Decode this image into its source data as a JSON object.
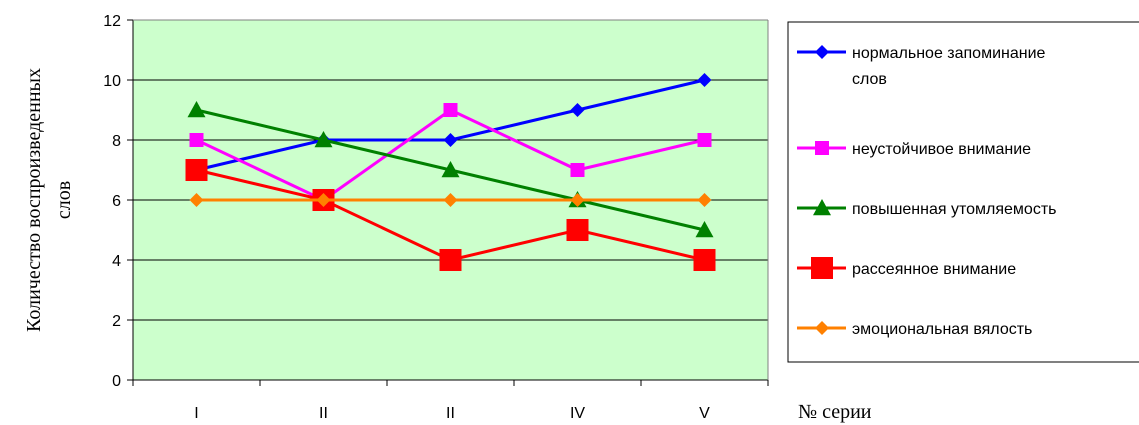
{
  "chart_data": {
    "type": "line",
    "categories": [
      "I",
      "II",
      "II",
      "IV",
      "V"
    ],
    "ylabel_line1": "Количество воспроизведенных",
    "ylabel_line2": "слов",
    "xlabel": "№ серии",
    "ylim": [
      0,
      12
    ],
    "yticks": [
      0,
      2,
      4,
      6,
      8,
      10,
      12
    ],
    "grid": "horizontal",
    "legend_position": "right",
    "plot_background": "#ccffcc",
    "series": [
      {
        "name": "нормальное запоминание слов",
        "name_lines": [
          "нормальное запоминание",
          "слов"
        ],
        "values": [
          7,
          8,
          8,
          9,
          10
        ],
        "color": "#0000ff",
        "marker": "diamond"
      },
      {
        "name": "неустойчивое внимание",
        "name_lines": [
          "неустойчивое внимание"
        ],
        "values": [
          8,
          6,
          9,
          7,
          8
        ],
        "color": "#ff00ff",
        "marker": "square"
      },
      {
        "name": "повышенная утомляемость",
        "name_lines": [
          "повышенная утомляемость"
        ],
        "values": [
          9,
          8,
          7,
          6,
          5
        ],
        "color": "#008000",
        "marker": "triangle"
      },
      {
        "name": "рассеянное внимание",
        "name_lines": [
          "рассеянное внимание"
        ],
        "values": [
          7,
          6,
          4,
          5,
          4
        ],
        "color": "#ff0000",
        "marker": "big-square"
      },
      {
        "name": "эмоциональная вялость",
        "name_lines": [
          "эмоциональная вялость"
        ],
        "values": [
          6,
          6,
          6,
          6,
          6
        ],
        "color": "#ff8000",
        "marker": "diamond"
      }
    ]
  }
}
